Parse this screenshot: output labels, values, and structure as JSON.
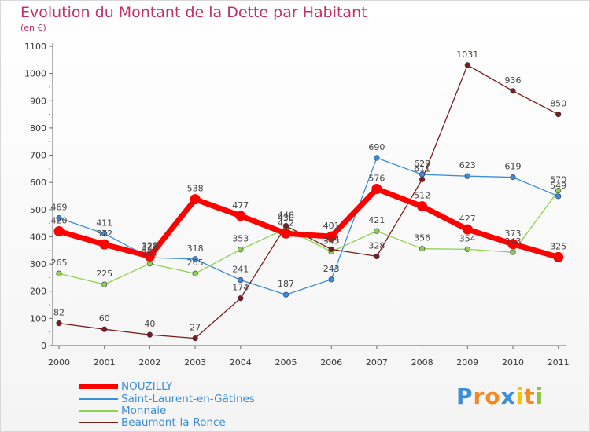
{
  "title": "Evolution du Montant de la Dette par Habitant",
  "subtitle": "(en €)",
  "logo": [
    "P",
    "r",
    "o",
    "x",
    "i",
    "t",
    "i"
  ],
  "logo_colors": [
    "#3a8fd8",
    "#f08a24",
    "#f08a24",
    "#3a8fd8",
    "#f5c400",
    "#f08a24",
    "#8cc63f"
  ],
  "chart_data": {
    "type": "line",
    "x": [
      "2000",
      "2001",
      "2002",
      "2003",
      "2004",
      "2005",
      "2006",
      "2007",
      "2008",
      "2009",
      "2010",
      "2011"
    ],
    "ylim": [
      0,
      1100
    ],
    "yticks": [
      0,
      100,
      200,
      300,
      400,
      500,
      600,
      700,
      800,
      900,
      1000,
      1100
    ],
    "grid": false,
    "legend_position": "bottom-left",
    "series": [
      {
        "name": "NOUZILLY",
        "color": "#ff0000",
        "values": [
          420,
          372,
          328,
          538,
          477,
          412,
          401,
          576,
          512,
          427,
          373,
          325
        ]
      },
      {
        "name": "Saint-Laurent-en-Gâtines",
        "color": "#3a8dd6",
        "values": [
          469,
          411,
          323,
          318,
          241,
          187,
          243,
          690,
          629,
          623,
          619,
          549
        ]
      },
      {
        "name": "Monnaie",
        "color": "#8fd14f",
        "values": [
          265,
          225,
          301,
          265,
          353,
          430,
          345,
          421,
          356,
          354,
          343,
          570
        ]
      },
      {
        "name": "Beaumont-la-Ronce",
        "color": "#7a1c1c",
        "values": [
          82,
          60,
          40,
          27,
          174,
          440,
          354,
          328,
          611,
          1031,
          936,
          850
        ]
      }
    ]
  }
}
